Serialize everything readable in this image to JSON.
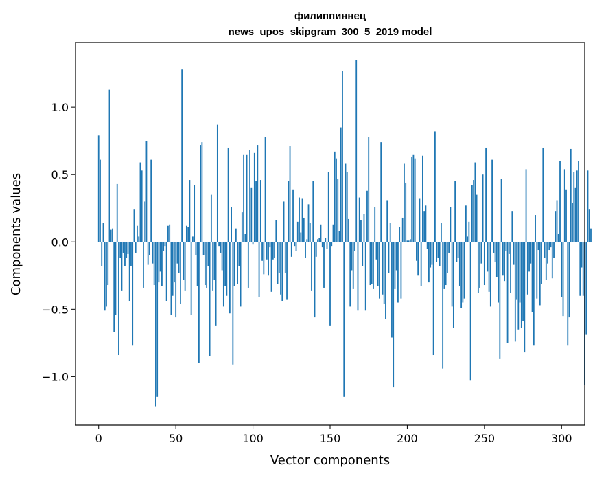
{
  "chart_data": {
    "type": "bar",
    "title": "филиппиннец",
    "subtitle": "news_upos_skipgram_300_5_2019 model",
    "xlabel": "Vector components",
    "ylabel": "Components values",
    "xlim": [
      -15,
      315
    ],
    "ylim": [
      -1.36,
      1.48
    ],
    "xticks": [
      0,
      50,
      100,
      150,
      200,
      250,
      300
    ],
    "xtick_labels": [
      "0",
      "50",
      "100",
      "150",
      "200",
      "250",
      "300"
    ],
    "yticks": [
      -1.0,
      -0.5,
      0.0,
      0.5,
      1.0
    ],
    "ytick_labels": [
      "−1.0",
      "−0.5",
      "0.0",
      "0.5",
      "1.0"
    ],
    "grid": false,
    "bar_color": "#1f77b4",
    "values": [
      0.79,
      0.61,
      -0.18,
      0.14,
      -0.51,
      -0.48,
      -0.32,
      1.13,
      0.09,
      0.1,
      -0.67,
      -0.54,
      0.43,
      -0.84,
      -0.12,
      -0.36,
      -0.08,
      -0.18,
      -0.12,
      -0.09,
      -0.44,
      -0.18,
      -0.77,
      0.24,
      -0.08,
      0.12,
      0.04,
      0.59,
      0.53,
      -0.34,
      0.3,
      0.75,
      -0.17,
      -0.1,
      0.61,
      -0.16,
      -0.32,
      -1.22,
      -1.15,
      -0.3,
      -0.22,
      -0.33,
      -0.07,
      -0.03,
      -0.44,
      0.12,
      0.13,
      -0.54,
      -0.4,
      -0.3,
      -0.56,
      -0.16,
      -0.23,
      -0.46,
      1.28,
      -0.28,
      -0.36,
      0.12,
      0.11,
      0.46,
      -0.54,
      0.04,
      0.42,
      -0.1,
      -0.33,
      -0.9,
      0.72,
      0.74,
      -0.1,
      -0.32,
      -0.34,
      -0.18,
      -0.85,
      0.35,
      -0.36,
      -0.28,
      -0.62,
      0.87,
      -0.03,
      -0.08,
      -0.21,
      -0.48,
      -0.33,
      -0.4,
      0.7,
      -0.53,
      0.26,
      -0.91,
      -0.33,
      0.1,
      -0.31,
      -0.18,
      -0.48,
      0.22,
      0.65,
      0.06,
      0.65,
      -0.34,
      0.68,
      0.4,
      -0.02,
      0.66,
      0.45,
      0.72,
      -0.41,
      0.46,
      -0.14,
      -0.24,
      0.78,
      -0.13,
      -0.25,
      -0.04,
      -0.37,
      -0.13,
      -0.12,
      0.16,
      -0.31,
      -0.23,
      -0.39,
      -0.44,
      0.3,
      -0.23,
      -0.43,
      0.45,
      0.71,
      -0.11,
      0.39,
      -0.03,
      -0.07,
      0.15,
      0.33,
      0.07,
      0.32,
      0.18,
      -0.12,
      0.02,
      0.28,
      0.14,
      -0.36,
      0.45,
      -0.56,
      -0.11,
      0.02,
      0.03,
      0.13,
      -0.04,
      -0.34,
      0.03,
      -0.05,
      0.52,
      -0.62,
      -0.03,
      0.13,
      0.67,
      0.62,
      0.47,
      0.08,
      0.85,
      1.27,
      -1.15,
      0.58,
      0.52,
      0.17,
      -0.48,
      -0.21,
      -0.35,
      -0.07,
      1.35,
      -0.51,
      0.33,
      0.16,
      -0.18,
      0.21,
      -0.51,
      0.38,
      0.78,
      -0.32,
      -0.31,
      -0.35,
      0.26,
      -0.13,
      -0.33,
      -0.42,
      0.74,
      -0.39,
      -0.46,
      -0.57,
      0.31,
      -0.23,
      0.14,
      -0.71,
      -1.08,
      -0.35,
      -0.21,
      -0.45,
      0.11,
      -0.42,
      0.18,
      0.58,
      0.44,
      0.01,
      0.01,
      0.02,
      0.63,
      0.65,
      0.62,
      -0.14,
      -0.25,
      0.32,
      -0.33,
      0.64,
      0.23,
      0.27,
      -0.05,
      -0.3,
      -0.19,
      -0.17,
      -0.84,
      0.82,
      -0.15,
      -0.12,
      -0.18,
      0.14,
      -0.94,
      -0.35,
      -0.32,
      -0.23,
      -0.08,
      0.26,
      -0.48,
      -0.64,
      0.45,
      -0.15,
      -0.12,
      -0.33,
      -0.49,
      -0.45,
      -0.42,
      0.27,
      0.04,
      0.15,
      -1.03,
      0.42,
      0.46,
      0.59,
      0.35,
      -0.38,
      -0.34,
      -0.16,
      0.5,
      -0.32,
      0.7,
      -0.22,
      -0.37,
      -0.48,
      0.61,
      -0.08,
      -0.15,
      -0.26,
      -0.45,
      -0.87,
      0.47,
      -0.25,
      -0.29,
      -0.07,
      -0.75,
      -0.09,
      -0.38,
      0.23,
      -0.17,
      -0.74,
      -0.43,
      -0.65,
      -0.45,
      -0.64,
      -0.59,
      -0.82,
      0.54,
      -0.39,
      -0.22,
      -0.16,
      -0.52,
      -0.77,
      0.2,
      -0.42,
      -0.06,
      -0.47,
      -0.31,
      0.7,
      -0.12,
      -0.28,
      -0.16,
      -0.06,
      -0.04,
      -0.27,
      -0.12,
      0.23,
      0.31,
      0.06,
      0.6,
      -0.41,
      -0.55,
      0.54,
      0.39,
      -0.77,
      -0.56,
      0.69,
      0.29,
      0.52,
      0.4,
      0.53,
      0.6,
      -0.4,
      -0.19,
      -0.4,
      -1.06,
      -0.69,
      0.53,
      0.24,
      0.1
    ]
  }
}
